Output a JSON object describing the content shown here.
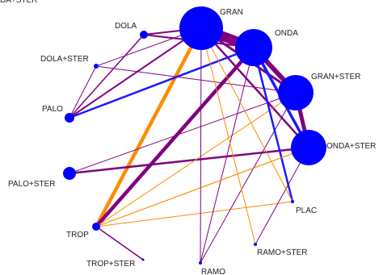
{
  "diagram": {
    "colors": {
      "node": "#0000ff",
      "edge_purple": "#800080",
      "edge_orange": "#ff8c00",
      "edge_blue": "#1a1aff",
      "label": "#222222"
    },
    "nodes": [
      {
        "id": "DOLA",
        "label": "DOLA"
      },
      {
        "id": "DOLA+STER",
        "label": "DOLA+STER"
      },
      {
        "id": "PALO",
        "label": "PALO"
      },
      {
        "id": "PALO+STER",
        "label": "PALO+STER"
      },
      {
        "id": "TROP",
        "label": "TROP"
      },
      {
        "id": "TROP+STER",
        "label": "TROP+STER"
      },
      {
        "id": "RAMO",
        "label": "RAMO"
      },
      {
        "id": "RAMO+STER",
        "label": "RAMO+STER"
      },
      {
        "id": "PLAC",
        "label": "PLAC"
      },
      {
        "id": "ONDA+STER",
        "label": "ONDA+STER"
      },
      {
        "id": "GRAN+STER",
        "label": "GRAN+STER"
      },
      {
        "id": "ONDA",
        "label": "ONDA"
      },
      {
        "id": "GRAN",
        "label": "GRAN"
      },
      {
        "id": "DA+STER",
        "label": "DA+STER"
      }
    ],
    "edges": [
      {
        "from": "GRAN",
        "to": "ONDA",
        "color": "purple"
      },
      {
        "from": "ONDA",
        "to": "GRAN+STER",
        "color": "purple"
      },
      {
        "from": "GRAN",
        "to": "GRAN+STER",
        "color": "purple"
      },
      {
        "from": "GRAN+STER",
        "to": "ONDA+STER",
        "color": "purple"
      },
      {
        "from": "ONDA",
        "to": "ONDA+STER",
        "color": "blue"
      },
      {
        "from": "GRAN",
        "to": "ONDA+STER",
        "color": "purple"
      },
      {
        "from": "GRAN",
        "to": "TROP",
        "color": "orange"
      },
      {
        "from": "ONDA",
        "to": "TROP",
        "color": "purple"
      },
      {
        "from": "PALO+STER",
        "to": "ONDA+STER",
        "color": "purple"
      },
      {
        "from": "PALO",
        "to": "ONDA",
        "color": "blue"
      },
      {
        "from": "PALO",
        "to": "GRAN",
        "color": "purple"
      },
      {
        "from": "DOLA",
        "to": "GRAN",
        "color": "purple"
      },
      {
        "from": "DOLA",
        "to": "ONDA",
        "color": "purple"
      },
      {
        "from": "DOLA",
        "to": "PALO",
        "color": "purple"
      },
      {
        "from": "DOLA+STER",
        "to": "GRAN",
        "color": "purple"
      },
      {
        "from": "DOLA+STER",
        "to": "GRAN+STER",
        "color": "purple"
      },
      {
        "from": "DOLA+STER",
        "to": "PALO",
        "color": "purple"
      },
      {
        "from": "PALO+STER",
        "to": "GRAN+STER",
        "color": "purple"
      },
      {
        "from": "TROP",
        "to": "GRAN+STER",
        "color": "orange"
      },
      {
        "from": "TROP",
        "to": "ONDA+STER",
        "color": "orange"
      },
      {
        "from": "TROP",
        "to": "PLAC",
        "color": "orange"
      },
      {
        "from": "TROP",
        "to": "TROP+STER",
        "color": "purple"
      },
      {
        "from": "GRAN",
        "to": "RAMO",
        "color": "purple"
      },
      {
        "from": "ONDA",
        "to": "RAMO",
        "color": "purple"
      },
      {
        "from": "GRAN+STER",
        "to": "RAMO",
        "color": "purple"
      },
      {
        "from": "ONDA+STER",
        "to": "RAMO+STER",
        "color": "purple"
      },
      {
        "from": "ONDA",
        "to": "PLAC",
        "color": "blue"
      },
      {
        "from": "GRAN",
        "to": "PLAC",
        "color": "orange"
      },
      {
        "from": "GRAN",
        "to": "RAMO+STER",
        "color": "orange"
      },
      {
        "from": "ONDA+STER",
        "to": "TROP",
        "color": "orange"
      }
    ]
  }
}
